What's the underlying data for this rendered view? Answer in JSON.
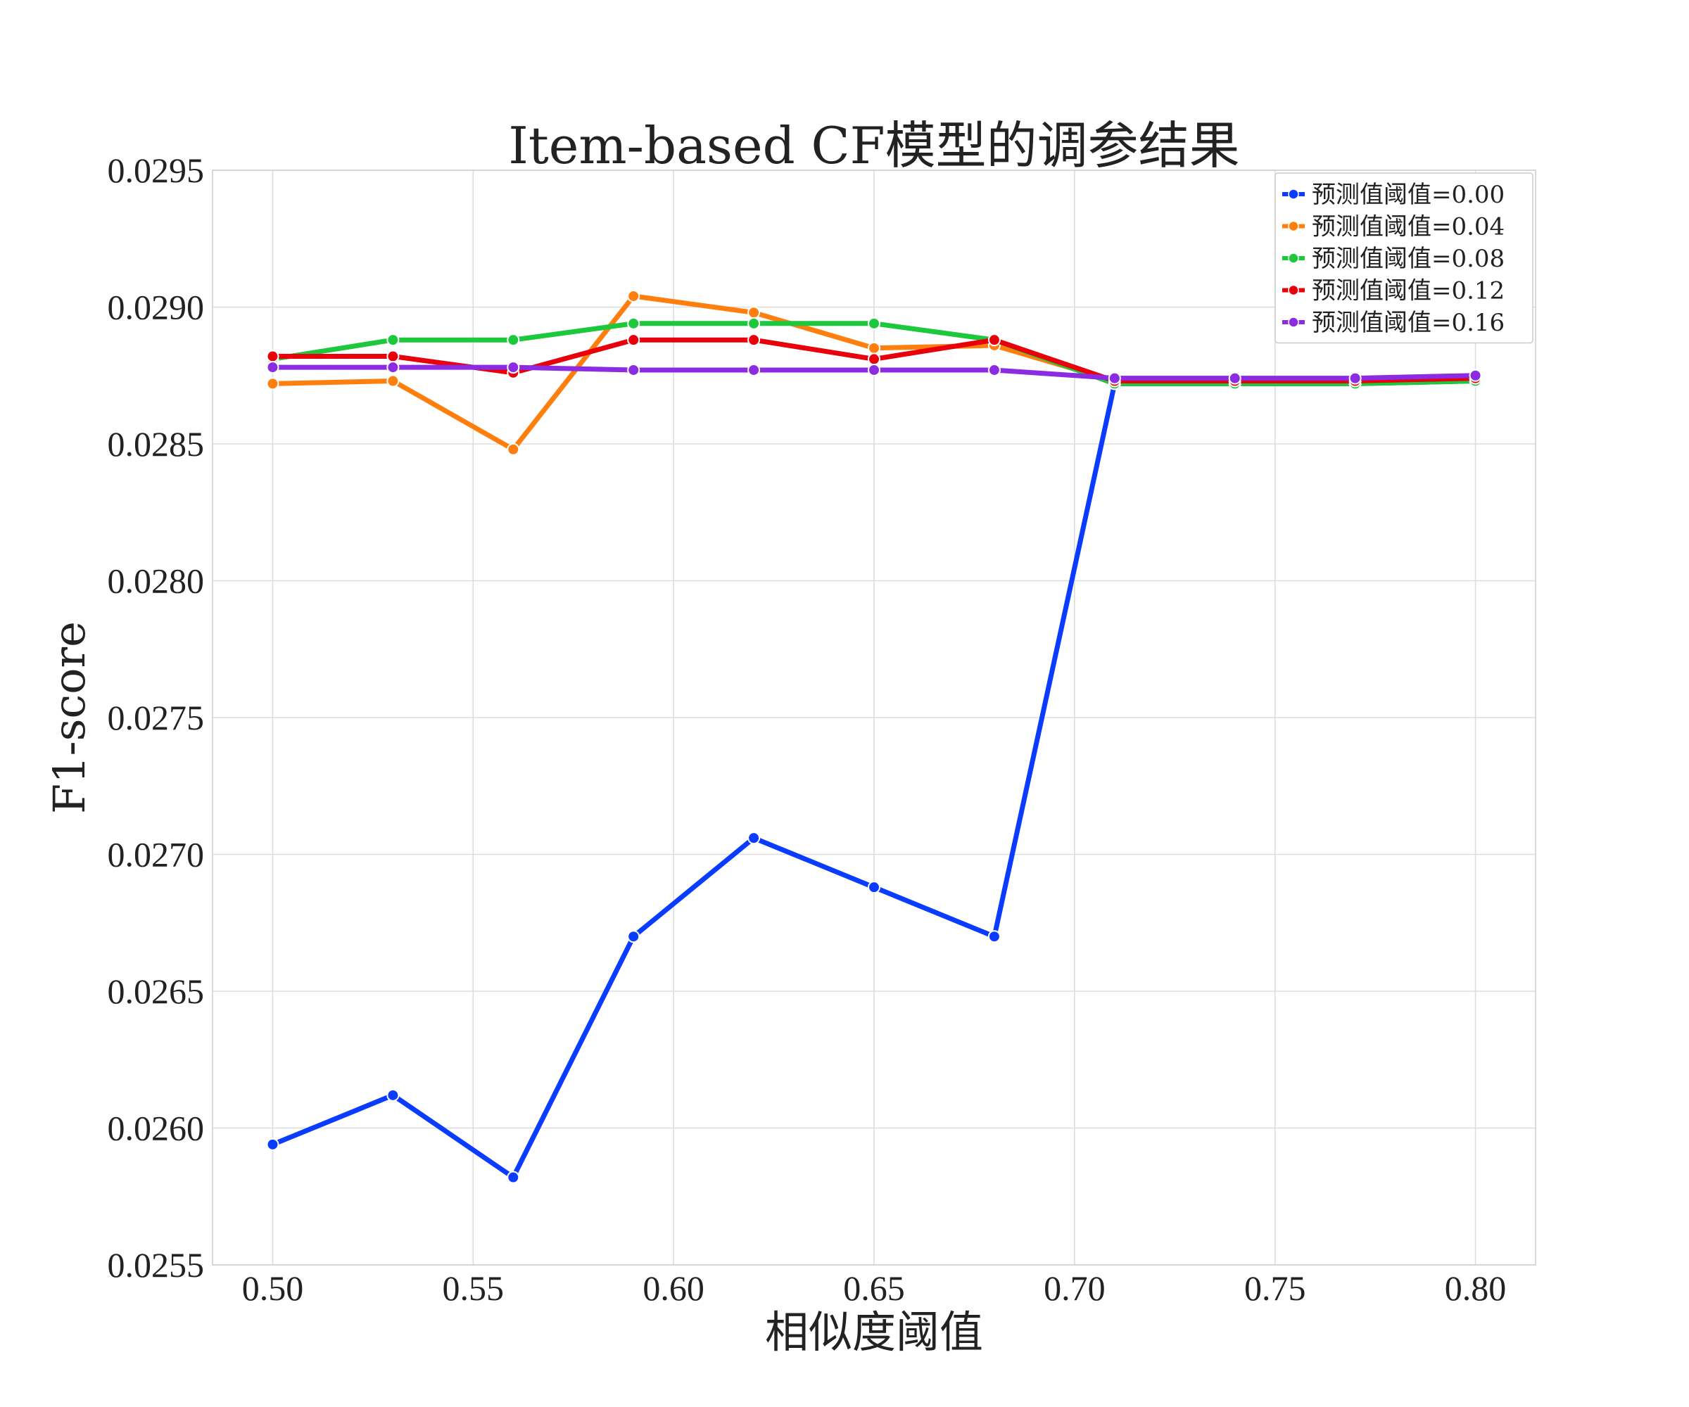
{
  "chart_data": {
    "type": "line",
    "title": "Item-based CF模型的调参结果",
    "xlabel": "相似度阈值",
    "ylabel": "F1-score",
    "x": [
      0.5,
      0.53,
      0.56,
      0.59,
      0.62,
      0.65,
      0.68,
      0.71,
      0.74,
      0.77,
      0.8
    ],
    "xlim": [
      0.485,
      0.815
    ],
    "ylim": [
      0.0255,
      0.0295
    ],
    "x_ticks": [
      "0.50",
      "0.55",
      "0.60",
      "0.65",
      "0.70",
      "0.75",
      "0.80"
    ],
    "x_tick_values": [
      0.5,
      0.55,
      0.6,
      0.65,
      0.7,
      0.75,
      0.8
    ],
    "y_ticks": [
      "0.0255",
      "0.0260",
      "0.0265",
      "0.0270",
      "0.0275",
      "0.0280",
      "0.0285",
      "0.0290",
      "0.0295"
    ],
    "y_tick_values": [
      0.0255,
      0.026,
      0.0265,
      0.027,
      0.0275,
      0.028,
      0.0285,
      0.029,
      0.0295
    ],
    "grid": true,
    "legend_position": "top-right",
    "series": [
      {
        "name": "预测值阈值=0.00",
        "color": "#0a3cff",
        "values": [
          0.02594,
          0.02612,
          0.02582,
          0.0267,
          0.02706,
          0.02688,
          0.0267,
          0.02872,
          0.02872,
          0.02872,
          0.02873
        ]
      },
      {
        "name": "预测值阈值=0.04",
        "color": "#ff7f0e",
        "values": [
          0.02872,
          0.02873,
          0.02848,
          0.02904,
          0.02898,
          0.02885,
          0.02886,
          0.02873,
          0.02873,
          0.02873,
          0.02874
        ]
      },
      {
        "name": "预测值阈值=0.08",
        "color": "#1ec83c",
        "values": [
          0.02881,
          0.02888,
          0.02888,
          0.02894,
          0.02894,
          0.02894,
          0.02888,
          0.02872,
          0.02872,
          0.02872,
          0.02873
        ]
      },
      {
        "name": "预测值阈值=0.12",
        "color": "#e8000b",
        "values": [
          0.02882,
          0.02882,
          0.02876,
          0.02888,
          0.02888,
          0.02881,
          0.02888,
          0.02873,
          0.02873,
          0.02873,
          0.02874
        ]
      },
      {
        "name": "预测值阈值=0.16",
        "color": "#8b2be2",
        "values": [
          0.02878,
          0.02878,
          0.02878,
          0.02877,
          0.02877,
          0.02877,
          0.02877,
          0.02874,
          0.02874,
          0.02874,
          0.02875
        ]
      }
    ]
  }
}
